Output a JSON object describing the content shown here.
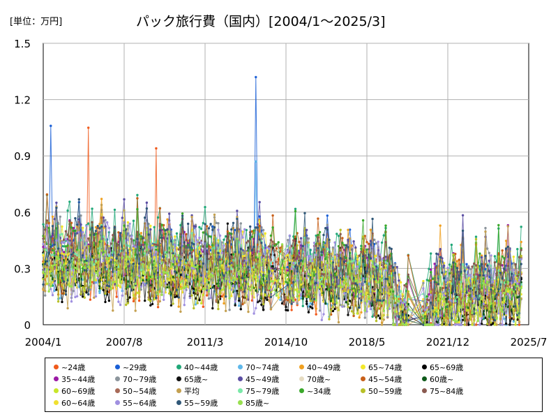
{
  "unit_label": "[単位：万円]",
  "chart_data": {
    "type": "line",
    "title": "パック旅行費（国内）[2004/1～2025/3]",
    "xlabel": "",
    "ylabel": "",
    "ylim": [
      0,
      1.5
    ],
    "y_ticks": [
      "0",
      "0.3",
      "0.6",
      "0.9",
      "1.2",
      "1.5"
    ],
    "x_ticks": [
      "2004/1",
      "2007/8",
      "2011/3",
      "2014/10",
      "2018/5",
      "2021/12",
      "2025/7"
    ],
    "grid": true,
    "legend_position": "bottom",
    "note": "Monthly series; values estimated from the plot envelope.",
    "series": [
      {
        "name": "~24歳",
        "color": "#f05a1c"
      },
      {
        "name": "~29歳",
        "color": "#1a5fd6"
      },
      {
        "name": "40~44歳",
        "color": "#20a878"
      },
      {
        "name": "70~74歳",
        "color": "#5fb8ea"
      },
      {
        "name": "40~49歳",
        "color": "#f0a020"
      },
      {
        "name": "65~74歳",
        "color": "#f2e82a"
      },
      {
        "name": "65~69歳",
        "color": "#000000"
      },
      {
        "name": "35~44歳",
        "color": "#9b1aa6"
      },
      {
        "name": "70~79歳",
        "color": "#8c959c"
      },
      {
        "name": "65歳~",
        "color": "#111111"
      },
      {
        "name": "45~49歳",
        "color": "#5b4ea3"
      },
      {
        "name": "70歳~",
        "color": "#e6dcc2"
      },
      {
        "name": "45~54歳",
        "color": "#c8601a"
      },
      {
        "name": "60歳~",
        "color": "#0e5a1a"
      },
      {
        "name": "60~69歳",
        "color": "#c8e62a"
      },
      {
        "name": "50~54歳",
        "color": "#a86a58"
      },
      {
        "name": "平均",
        "color": "#c4a050"
      },
      {
        "name": "75~79歳",
        "color": "#7ae8a8"
      },
      {
        "name": "~34歳",
        "color": "#3aa82a"
      },
      {
        "name": "50~59歳",
        "color": "#b8c028"
      },
      {
        "name": "75~84歳",
        "color": "#8a5a50"
      },
      {
        "name": "60~64歳",
        "color": "#f0e030"
      },
      {
        "name": "55~64歳",
        "color": "#a090e0"
      },
      {
        "name": "55~59歳",
        "color": "#305878"
      },
      {
        "name": "85歳~",
        "color": "#98e050"
      }
    ],
    "highlights": [
      {
        "x": "2004/5",
        "y": 1.06
      },
      {
        "x": "2006/1",
        "y": 1.05
      },
      {
        "x": "2009/1",
        "y": 0.94
      },
      {
        "x": "2013/6",
        "y": 1.32
      },
      {
        "x": "2013/6",
        "y": 0.87
      },
      {
        "x": "2024/8",
        "y": 0.53
      }
    ]
  }
}
